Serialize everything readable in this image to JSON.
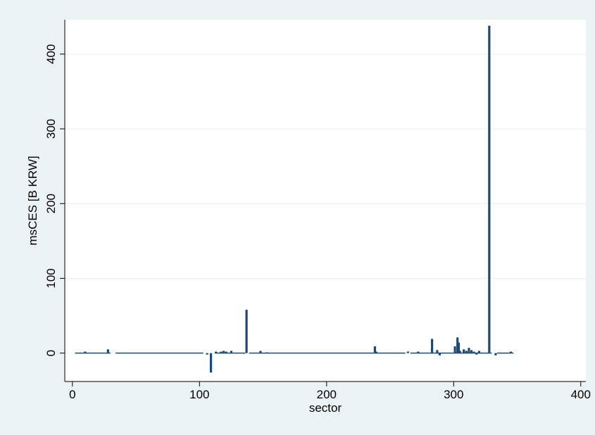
{
  "chart_data": {
    "type": "bar",
    "xlabel": "sector",
    "ylabel": "msCES [B KRW]",
    "xlim": [
      -6,
      404
    ],
    "ylim": [
      -38,
      446
    ],
    "x_ticks": [
      0,
      100,
      200,
      300,
      400
    ],
    "y_ticks": [
      0,
      100,
      200,
      300,
      400
    ],
    "x_tick_labels": [
      "0",
      "100",
      "200",
      "300",
      "400"
    ],
    "y_tick_labels": [
      "0",
      "100",
      "200",
      "300",
      "400"
    ],
    "grid": "horizontal",
    "legend": "none",
    "bar_color": "#1c4a72",
    "plot_background": "#ffffff",
    "outer_background": "#eaf2f3",
    "gridline_color": "#eaf2f3",
    "points": [
      {
        "x": 10,
        "y": 2
      },
      {
        "x": 28,
        "y": 5
      },
      {
        "x": 106,
        "y": -2
      },
      {
        "x": 109,
        "y": -26
      },
      {
        "x": 113,
        "y": 2
      },
      {
        "x": 117,
        "y": 2
      },
      {
        "x": 119,
        "y": 3
      },
      {
        "x": 121,
        "y": 2
      },
      {
        "x": 125,
        "y": 3
      },
      {
        "x": 137,
        "y": 58
      },
      {
        "x": 148,
        "y": 3
      },
      {
        "x": 153,
        "y": 1
      },
      {
        "x": 238,
        "y": 9
      },
      {
        "x": 239,
        "y": 2
      },
      {
        "x": 264,
        "y": 2
      },
      {
        "x": 272,
        "y": 2
      },
      {
        "x": 283,
        "y": 19
      },
      {
        "x": 287,
        "y": 4
      },
      {
        "x": 289,
        "y": -3
      },
      {
        "x": 301,
        "y": 9
      },
      {
        "x": 303,
        "y": 21
      },
      {
        "x": 304,
        "y": 14
      },
      {
        "x": 305,
        "y": 3
      },
      {
        "x": 308,
        "y": 5
      },
      {
        "x": 310,
        "y": 3
      },
      {
        "x": 312,
        "y": 7
      },
      {
        "x": 314,
        "y": 4
      },
      {
        "x": 316,
        "y": 2
      },
      {
        "x": 318,
        "y": -2
      },
      {
        "x": 320,
        "y": 3
      },
      {
        "x": 328,
        "y": 438
      },
      {
        "x": 333,
        "y": -3
      },
      {
        "x": 345,
        "y": 2
      }
    ],
    "baseline_segments": [
      [
        2,
        30
      ],
      [
        34,
        103
      ],
      [
        112,
        136
      ],
      [
        139,
        262
      ],
      [
        266,
        330
      ],
      [
        334,
        347
      ]
    ]
  }
}
